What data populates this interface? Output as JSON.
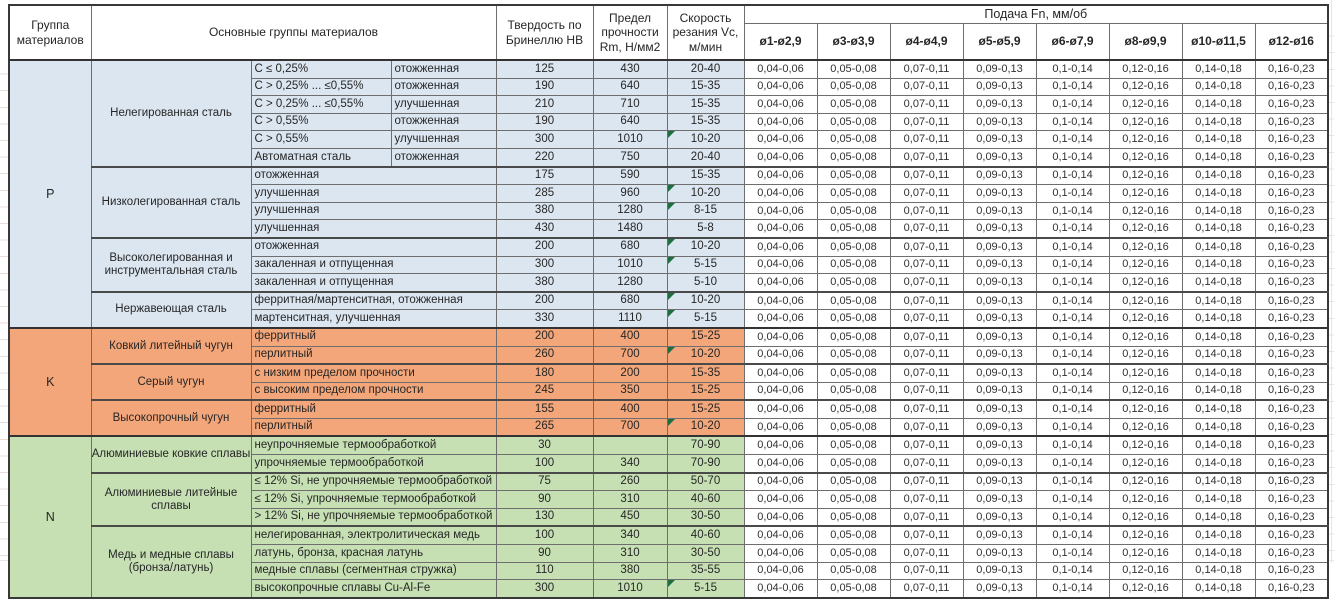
{
  "table": {
    "header": {
      "col_group": "Группа материалов",
      "col_material": "Основные группы материалов",
      "col_hb": "Твердость по Бринеллю HB",
      "col_rm": "Предел прочности Rm, Н/мм2",
      "col_vc": "Скорость резания Vc, м/мин",
      "feed_title": "Подача Fn, мм/об",
      "feed_cols": [
        "ø1-ø2,9",
        "ø3-ø3,9",
        "ø4-ø4,9",
        "ø5-ø5,9",
        "ø6-ø7,9",
        "ø8-ø9,9",
        "ø10-ø11,5",
        "ø12-ø16"
      ]
    },
    "feeds": [
      "0,04-0,06",
      "0,05-0,08",
      "0,07-0,11",
      "0,09-0,13",
      "0,1-0,14",
      "0,12-0,16",
      "0,14-0,18",
      "0,16-0,23"
    ],
    "note_color": "#1d6f42",
    "groups": [
      {
        "code": "P",
        "color": "#dce6f1",
        "subgroups": [
          {
            "name": "Нелегированная сталь",
            "rows": [
              {
                "d": [
                  "C ≤ 0,25%",
                  "отожженная"
                ],
                "hb": "125",
                "rm": "430",
                "vc": "20-40",
                "note": false
              },
              {
                "d": [
                  "C > 0,25% ... ≤0,55%",
                  "отожженная"
                ],
                "hb": "190",
                "rm": "640",
                "vc": "15-35",
                "note": false
              },
              {
                "d": [
                  "C > 0,25% ... ≤0,55%",
                  "улучшенная"
                ],
                "hb": "210",
                "rm": "710",
                "vc": "15-35",
                "note": false
              },
              {
                "d": [
                  "C > 0,55%",
                  "отожженная"
                ],
                "hb": "190",
                "rm": "640",
                "vc": "15-35",
                "note": false
              },
              {
                "d": [
                  "C > 0,55%",
                  "улучшенная"
                ],
                "hb": "300",
                "rm": "1010",
                "vc": "10-20",
                "note": true
              },
              {
                "d": [
                  "Автоматная сталь",
                  "отожженная"
                ],
                "hb": "220",
                "rm": "750",
                "vc": "20-40",
                "note": false
              }
            ]
          },
          {
            "name": "Низколегированная сталь",
            "rows": [
              {
                "d": [
                  "отожженная"
                ],
                "hb": "175",
                "rm": "590",
                "vc": "15-35",
                "note": false
              },
              {
                "d": [
                  "улучшенная"
                ],
                "hb": "285",
                "rm": "960",
                "vc": "10-20",
                "note": true
              },
              {
                "d": [
                  "улучшенная"
                ],
                "hb": "380",
                "rm": "1280",
                "vc": "8-15",
                "note": true
              },
              {
                "d": [
                  "улучшенная"
                ],
                "hb": "430",
                "rm": "1480",
                "vc": "5-8",
                "note": false
              }
            ]
          },
          {
            "name": "Высоколегированная и инструментальная сталь",
            "rows": [
              {
                "d": [
                  "отожженная"
                ],
                "hb": "200",
                "rm": "680",
                "vc": "10-20",
                "note": true
              },
              {
                "d": [
                  "закаленная и отпущенная"
                ],
                "hb": "300",
                "rm": "1010",
                "vc": "5-15",
                "note": true
              },
              {
                "d": [
                  "закаленная и отпущенная"
                ],
                "hb": "380",
                "rm": "1280",
                "vc": "5-10",
                "note": false
              }
            ]
          },
          {
            "name": "Нержавеющая сталь",
            "rows": [
              {
                "d": [
                  "ферритная/мартенситная, отожженная"
                ],
                "hb": "200",
                "rm": "680",
                "vc": "10-20",
                "note": true
              },
              {
                "d": [
                  "мартенситная, улучшенная"
                ],
                "hb": "330",
                "rm": "1110",
                "vc": "5-15",
                "note": true
              }
            ]
          }
        ]
      },
      {
        "code": "K",
        "color": "#f2a679",
        "subgroups": [
          {
            "name": "Ковкий литейный чугун",
            "rows": [
              {
                "d": [
                  "ферритный"
                ],
                "hb": "200",
                "rm": "400",
                "vc": "15-25",
                "note": false
              },
              {
                "d": [
                  "перлитный"
                ],
                "hb": "260",
                "rm": "700",
                "vc": "10-20",
                "note": true
              }
            ]
          },
          {
            "name": "Серый чугун",
            "rows": [
              {
                "d": [
                  "с низким пределом прочности"
                ],
                "hb": "180",
                "rm": "200",
                "vc": "15-35",
                "note": false
              },
              {
                "d": [
                  "с высоким пределом прочности"
                ],
                "hb": "245",
                "rm": "350",
                "vc": "15-25",
                "note": false
              }
            ]
          },
          {
            "name": "Высокопрочный чугун",
            "rows": [
              {
                "d": [
                  "ферритный"
                ],
                "hb": "155",
                "rm": "400",
                "vc": "15-25",
                "note": false
              },
              {
                "d": [
                  "перлитный"
                ],
                "hb": "265",
                "rm": "700",
                "vc": "10-20",
                "note": true
              }
            ]
          }
        ]
      },
      {
        "code": "N",
        "color": "#c6e0b4",
        "subgroups": [
          {
            "name": "Алюминиевые ковкие сплавы",
            "rows": [
              {
                "d": [
                  "неупрочняемые термообработкой"
                ],
                "hb": "30",
                "rm": "",
                "vc": "70-90",
                "note": false
              },
              {
                "d": [
                  "упрочняемые термообработкой"
                ],
                "hb": "100",
                "rm": "340",
                "vc": "70-90",
                "note": false
              }
            ]
          },
          {
            "name": "Алюминиевые литейные сплавы",
            "rows": [
              {
                "d": [
                  "≤ 12% Si, не упрочняемые термообработкой"
                ],
                "hb": "75",
                "rm": "260",
                "vc": "50-70",
                "note": false
              },
              {
                "d": [
                  "≤ 12% Si, упрочняемые термообработкой"
                ],
                "hb": "90",
                "rm": "310",
                "vc": "40-60",
                "note": false
              },
              {
                "d": [
                  "> 12% Si, не упрочняемые термообработкой"
                ],
                "hb": "130",
                "rm": "450",
                "vc": "30-50",
                "note": false
              }
            ]
          },
          {
            "name": "Медь и медные сплавы (бронза/латунь)",
            "rows": [
              {
                "d": [
                  "нелегированная, электролитическая медь"
                ],
                "hb": "100",
                "rm": "340",
                "vc": "40-60",
                "note": false
              },
              {
                "d": [
                  "латунь, бронза, красная латунь"
                ],
                "hb": "90",
                "rm": "310",
                "vc": "30-50",
                "note": false
              },
              {
                "d": [
                  "медные сплавы (сегментная стружка)"
                ],
                "hb": "110",
                "rm": "380",
                "vc": "35-55",
                "note": false
              },
              {
                "d": [
                  "высокопрочные сплавы Cu-Al-Fe"
                ],
                "hb": "300",
                "rm": "1010",
                "vc": "5-15",
                "note": true
              }
            ]
          }
        ]
      }
    ]
  }
}
